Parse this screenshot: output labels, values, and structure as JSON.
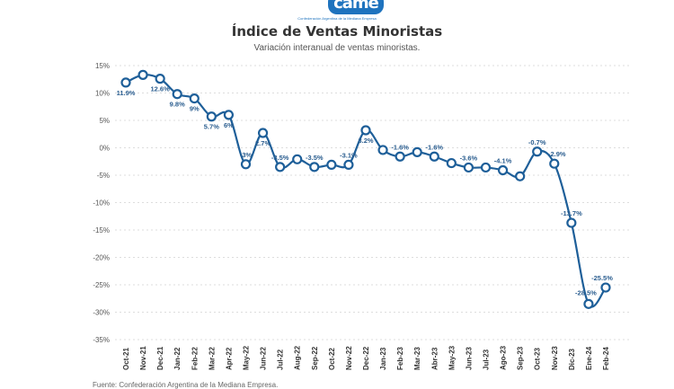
{
  "logo": {
    "text": "came",
    "tagline": "Confederación Argentina de la Mediana Empresa"
  },
  "colors": {
    "line": "#1e5f99",
    "marker_fill": "#ffffff",
    "label": "#2a5d8f",
    "grid": "#dddddd"
  },
  "footer": {
    "source": "Fuente: Confederación Argentina de la Mediana Empresa."
  },
  "chart_data": {
    "type": "line",
    "title": "Índice de Ventas Minoristas",
    "subtitle": "Variación interanual de ventas minoristas.",
    "xlabel": "",
    "ylabel": "",
    "ylim": [
      -35,
      15
    ],
    "yticks": [
      15,
      10,
      5,
      0,
      -5,
      -10,
      -15,
      -20,
      -25,
      -30,
      -35
    ],
    "ytick_labels": [
      "15%",
      "10%",
      "5%",
      "0%",
      "-5%",
      "-10%",
      "-15%",
      "-20%",
      "-25%",
      "-30%",
      "-35%"
    ],
    "grid": true,
    "categories": [
      "Oct-21",
      "Nov-21",
      "Dec-21",
      "Jan-22",
      "Feb-22",
      "Mar-22",
      "Apr-22",
      "May-22",
      "Jun-22",
      "Jul-22",
      "Aug-22",
      "Sep-22",
      "Oct-22",
      "Nov-22",
      "Dec-22",
      "Jan-23",
      "Feb-23",
      "Mar-23",
      "Abr-23",
      "May-23",
      "Jun-23",
      "Jul-23",
      "Ago-23",
      "Sep-23",
      "Oct-23",
      "Nov-23",
      "Dic-23",
      "Ene-24",
      "Feb-24"
    ],
    "values": [
      11.9,
      13.3,
      12.6,
      9.8,
      9,
      5.7,
      6,
      -3,
      2.7,
      -3.5,
      -2.1,
      -3.5,
      -3.1,
      -3.1,
      3.2,
      -0.4,
      -1.6,
      -0.8,
      -1.6,
      -2.8,
      -3.6,
      -3.6,
      -4.1,
      -5.2,
      -0.7,
      -2.9,
      -13.7,
      -28.5,
      -25.5
    ],
    "data_labels": [
      "11.9%",
      null,
      "12.6%",
      "9.8%",
      "9%",
      "5.7%",
      "6%",
      "-3%",
      "2.7%",
      "-3.5%",
      null,
      "-3.5%",
      null,
      "-3.1%",
      "3.2%",
      null,
      "-1.6%",
      null,
      "-1.6%",
      null,
      "-3.6%",
      null,
      "-4.1%",
      null,
      "-0.7%",
      "-2.9%",
      "-13.7%",
      "-28.5%",
      "-25.5%"
    ]
  }
}
